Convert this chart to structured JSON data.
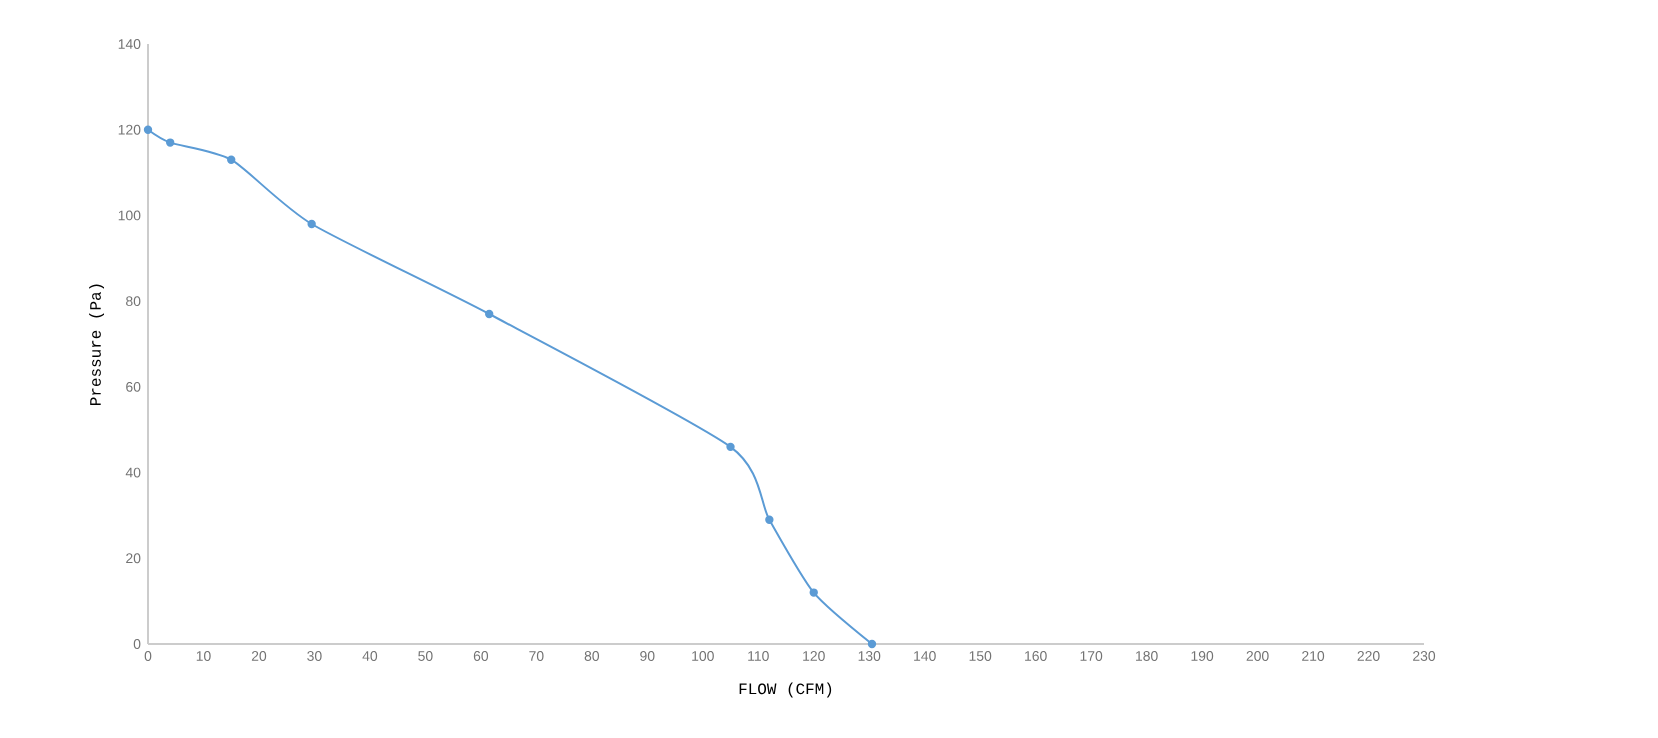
{
  "chart_data": {
    "type": "line",
    "xlabel": "FLOW (CFM)",
    "ylabel": "Pressure (Pa)",
    "x": [
      0,
      4,
      15,
      29.5,
      61.5,
      105,
      112,
      120,
      130.5
    ],
    "series": [
      {
        "color": "#5b9bd5",
        "values": [
          120,
          117,
          113,
          98,
          77,
          46,
          29,
          12,
          0
        ]
      }
    ],
    "xlim": [
      0,
      230
    ],
    "xticks": [
      0,
      10,
      20,
      30,
      40,
      50,
      60,
      70,
      80,
      90,
      100,
      110,
      120,
      130,
      140,
      150,
      160,
      170,
      180,
      190,
      200,
      210,
      220,
      230
    ],
    "ylim": [
      0,
      140
    ],
    "yticks": [
      0,
      20,
      40,
      60,
      80,
      100,
      120,
      140
    ],
    "marker": "circle",
    "line_style": "solid",
    "grid": false
  }
}
